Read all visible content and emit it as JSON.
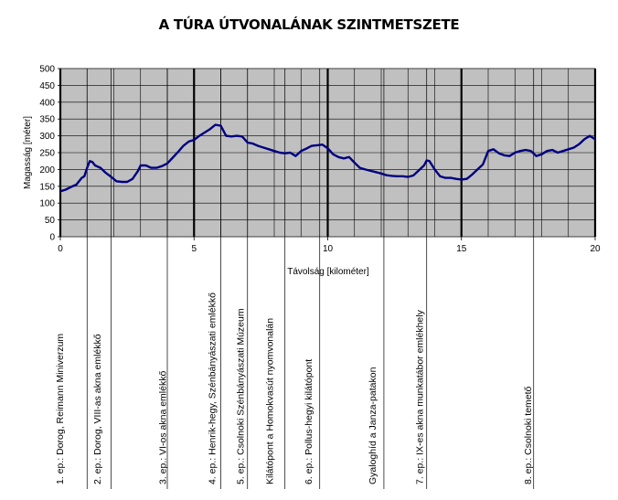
{
  "chart_data": {
    "type": "line",
    "title": "A TÚRA ÚTVONALÁNAK SZINTMETSZETE",
    "xlabel": "Távolság [kilométer]",
    "ylabel": "Magasság [méter]",
    "xlim": [
      0,
      20
    ],
    "ylim": [
      0,
      500
    ],
    "x_ticks": [
      "0",
      "5",
      "10",
      "15",
      "20"
    ],
    "y_ticks": [
      "0",
      "50",
      "100",
      "150",
      "200",
      "250",
      "300",
      "350",
      "400",
      "450",
      "500"
    ],
    "grid": true,
    "background": "#c0c0c0",
    "line_color": "#000080",
    "series": [
      {
        "x": [
          0,
          0.2,
          0.4,
          0.6,
          0.8,
          0.9,
          1.0,
          1.1,
          1.2,
          1.3,
          1.5,
          1.7,
          1.9,
          2.1,
          2.3,
          2.5,
          2.7,
          2.9,
          3.0,
          3.2,
          3.4,
          3.6,
          3.8,
          4.0,
          4.2,
          4.4,
          4.6,
          4.8,
          5.0,
          5.2,
          5.4,
          5.6,
          5.8,
          6.0,
          6.2,
          6.4,
          6.6,
          6.8,
          7.0,
          7.2,
          7.4,
          7.6,
          7.8,
          8.0,
          8.2,
          8.4,
          8.6,
          8.8,
          9.0,
          9.2,
          9.4,
          9.6,
          9.8,
          10.0,
          10.2,
          10.4,
          10.6,
          10.8,
          11.0,
          11.2,
          11.4,
          11.6,
          11.8,
          12.0,
          12.2,
          12.4,
          12.6,
          12.8,
          13.0,
          13.2,
          13.4,
          13.6,
          13.7,
          13.8,
          14.0,
          14.2,
          14.4,
          14.6,
          14.8,
          15.0,
          15.2,
          15.4,
          15.6,
          15.8,
          16.0,
          16.2,
          16.4,
          16.6,
          16.8,
          17.0,
          17.2,
          17.4,
          17.6,
          17.8,
          18.0,
          18.2,
          18.4,
          18.6,
          18.8,
          19.0,
          19.2,
          19.4,
          19.6,
          19.8,
          20.0
        ],
        "values": [
          135,
          140,
          148,
          155,
          175,
          180,
          205,
          225,
          222,
          212,
          205,
          190,
          178,
          165,
          163,
          163,
          172,
          195,
          212,
          212,
          205,
          205,
          210,
          218,
          235,
          252,
          270,
          283,
          288,
          300,
          310,
          320,
          333,
          330,
          300,
          298,
          300,
          298,
          280,
          277,
          270,
          265,
          260,
          255,
          250,
          248,
          250,
          240,
          255,
          262,
          270,
          272,
          274,
          263,
          245,
          237,
          233,
          237,
          220,
          205,
          200,
          196,
          192,
          188,
          183,
          181,
          180,
          180,
          178,
          182,
          197,
          212,
          227,
          225,
          200,
          180,
          175,
          175,
          172,
          170,
          172,
          185,
          200,
          215,
          255,
          260,
          248,
          242,
          240,
          250,
          255,
          258,
          255,
          240,
          245,
          255,
          258,
          250,
          255,
          260,
          265,
          275,
          290,
          300,
          290
        ]
      }
    ],
    "markers": [
      {
        "x": 1.0,
        "label": "1. ep.: Dorog, Reimann Miniverzum",
        "line_x": 1.0,
        "label_x": 0.0
      },
      {
        "x": 1.4,
        "label": "2. ep.: Dorog, VIII-as akna emlékkő",
        "line_x": 1.9,
        "label_x": 1.4
      },
      {
        "x": 3.85,
        "label": "3. ep.: VI-os akna emlékkő",
        "line_x": 4.0,
        "label_x": 3.85
      },
      {
        "x": 5.7,
        "label": "4. ep.: Henrik-hegy, Szénbányászati emlékkő",
        "line_x": 6.0,
        "label_x": 5.7
      },
      {
        "x": 6.75,
        "label": "5. ep.: Csolnoki Szénbányászati Múzeum",
        "line_x": 7.0,
        "label_x": 6.75
      },
      {
        "x": 7.85,
        "label": "Kilátópont a Homokvasút nyomvonalán",
        "line_x": 8.4,
        "label_x": 7.85
      },
      {
        "x": 9.3,
        "label": "6. ep.: Pollus-hegyi kilátópont",
        "line_x": 9.7,
        "label_x": 9.3
      },
      {
        "x": 11.7,
        "label": "Gyaloghíd a Janza-patakon",
        "line_x": 12.1,
        "label_x": 11.7
      },
      {
        "x": 13.45,
        "label": "7. ep.: IX-es akna munkatábor emlékhely",
        "line_x": 13.7,
        "label_x": 13.45
      },
      {
        "x": 17.5,
        "label": "8. ep.: Csolnoki temető",
        "line_x": 17.7,
        "label_x": 17.5
      }
    ]
  }
}
